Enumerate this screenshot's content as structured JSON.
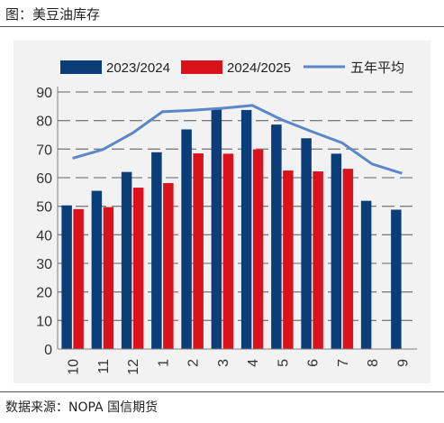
{
  "header": {
    "figure_title": "图：美豆油库存"
  },
  "footer": {
    "source": "数据来源：NOPA 国信期货"
  },
  "colors": {
    "series_1": "#0b3d78",
    "series_2": "#d9121c",
    "series_3": "#5b86c8",
    "grid": "#7f7f7f",
    "background": "#f2f2f2"
  },
  "chart_data": {
    "type": "bar",
    "title": "",
    "xlabel": "",
    "ylabel": "",
    "categories": [
      "10",
      "11",
      "12",
      "1",
      "2",
      "3",
      "4",
      "5",
      "6",
      "7",
      "8",
      "9"
    ],
    "ylim": [
      0,
      90
    ],
    "yticks": [
      0,
      10,
      20,
      30,
      40,
      50,
      60,
      70,
      80,
      90
    ],
    "grid": "horizontal dashed",
    "legend": "top",
    "series": [
      {
        "name": "2023/2024",
        "kind": "bar",
        "values": [
          50.3,
          55.4,
          62.0,
          68.9,
          76.9,
          84.1,
          83.7,
          78.6,
          73.8,
          68.4,
          51.9,
          48.8
        ]
      },
      {
        "name": "2024/2025",
        "kind": "bar",
        "values": [
          49.0,
          49.7,
          56.5,
          58.1,
          68.5,
          68.4,
          69.9,
          62.5,
          62.2,
          63.1,
          null,
          null
        ]
      },
      {
        "name": "五年平均",
        "kind": "line",
        "values": [
          66.8,
          69.8,
          75.6,
          83.1,
          83.6,
          84.3,
          85.3,
          80.2,
          76.1,
          72.2,
          64.8,
          61.5
        ]
      }
    ]
  }
}
